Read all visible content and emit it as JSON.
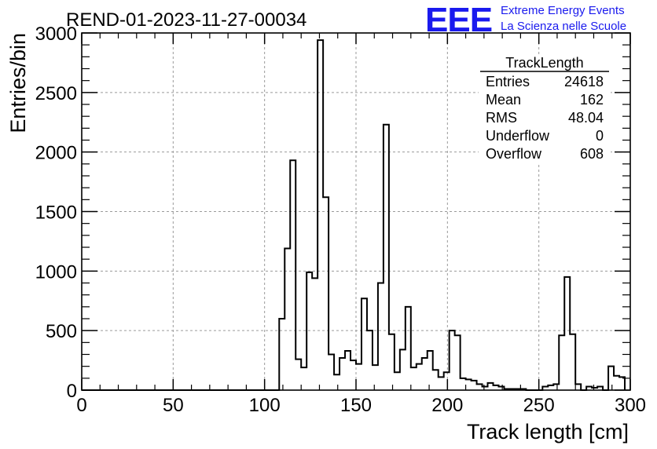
{
  "header": {
    "title": "REND-01-2023-11-27-00034",
    "logo_text": "EEE",
    "logo_line1": "Extreme Energy Events",
    "logo_line2": "La Scienza nelle Scuole",
    "brand_color": "#1a1aee"
  },
  "stats": {
    "title": "TrackLength",
    "rows": [
      {
        "label": "Entries",
        "value": "24618"
      },
      {
        "label": "Mean",
        "value": "162"
      },
      {
        "label": "RMS",
        "value": "48.04"
      },
      {
        "label": "Underflow",
        "value": "0"
      },
      {
        "label": "Overflow",
        "value": "608"
      }
    ]
  },
  "chart_data": {
    "type": "bar",
    "histogram": true,
    "xlabel": "Track length [cm]",
    "ylabel": "Entries/bin",
    "xlim": [
      0,
      300
    ],
    "ylim": [
      0,
      3000
    ],
    "x_ticks": [
      "0",
      "50",
      "100",
      "150",
      "200",
      "250",
      "300"
    ],
    "y_ticks": [
      "0",
      "500",
      "1000",
      "1500",
      "2000",
      "2500",
      "3000"
    ],
    "grid": true,
    "bin_width": 3,
    "bin_start": 0,
    "values": [
      0,
      0,
      0,
      0,
      0,
      0,
      0,
      0,
      0,
      0,
      0,
      0,
      0,
      0,
      0,
      0,
      0,
      0,
      0,
      0,
      0,
      0,
      0,
      0,
      0,
      0,
      0,
      0,
      0,
      0,
      0,
      0,
      0,
      0,
      0,
      0,
      600,
      1190,
      1930,
      260,
      190,
      990,
      940,
      2940,
      1620,
      300,
      130,
      270,
      330,
      250,
      220,
      770,
      500,
      210,
      900,
      2230,
      470,
      150,
      340,
      700,
      190,
      220,
      270,
      330,
      170,
      110,
      150,
      500,
      460,
      100,
      90,
      80,
      50,
      30,
      60,
      40,
      30,
      10,
      10,
      10,
      10,
      0,
      0,
      0,
      30,
      40,
      50,
      460,
      950,
      470,
      50,
      0,
      30,
      20,
      30,
      0,
      200,
      120,
      110
    ]
  }
}
